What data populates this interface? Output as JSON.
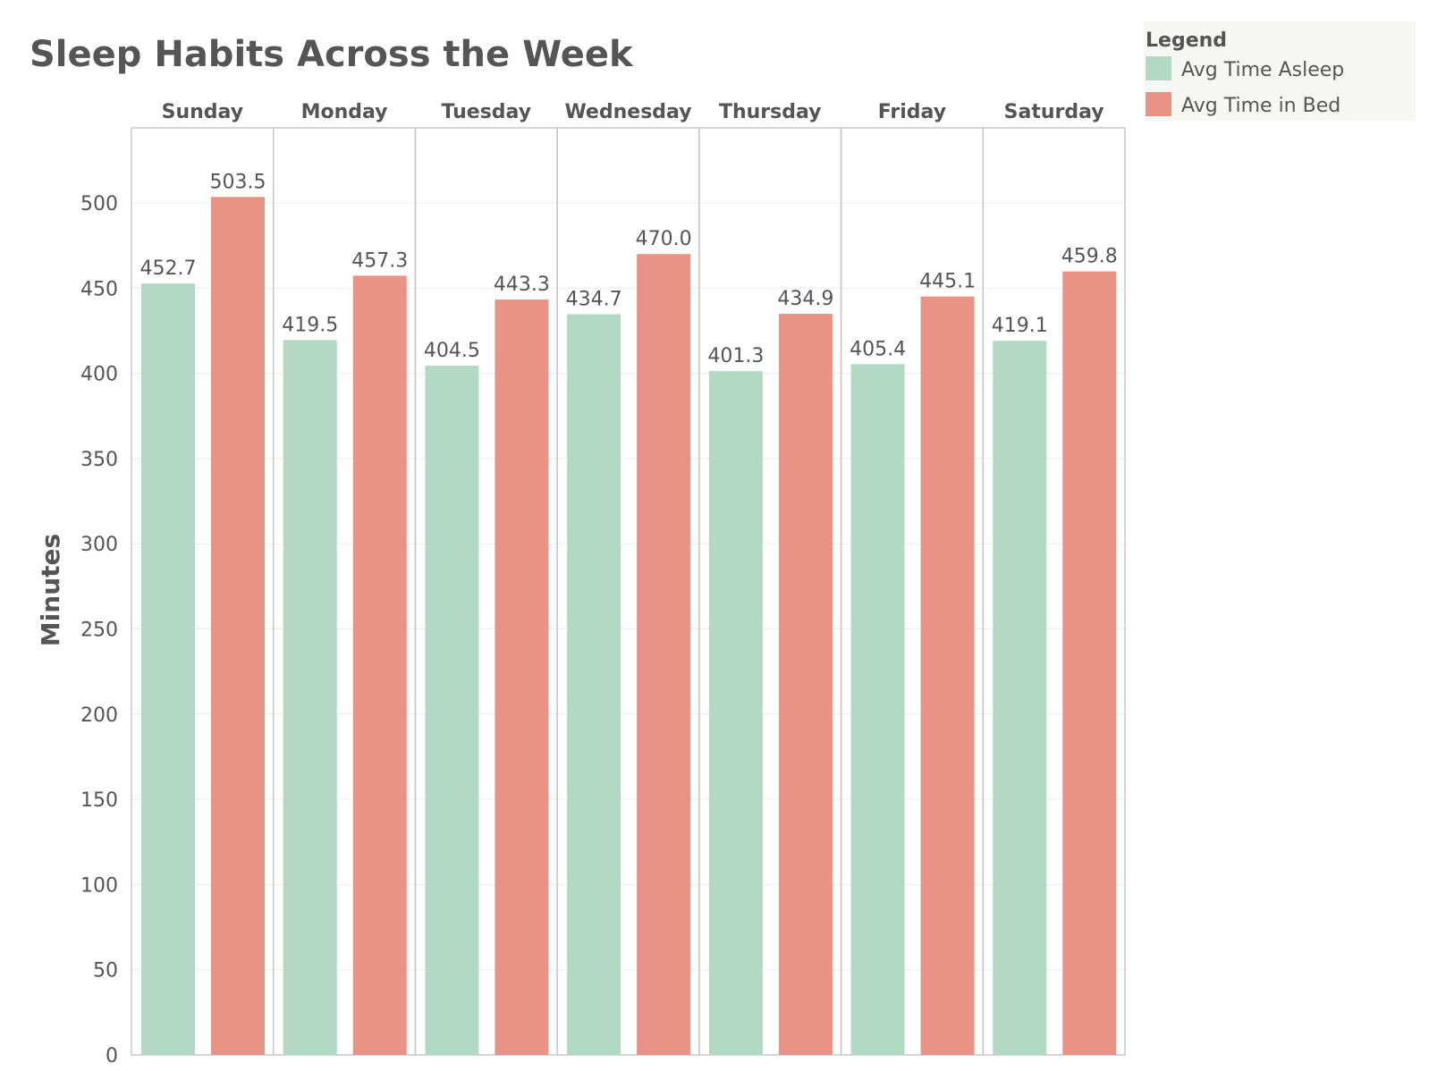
{
  "chart_data": {
    "type": "bar",
    "title": "Sleep Habits Across the Week",
    "ylabel": "Minutes",
    "xlabel": "",
    "ylim": [
      0,
      545
    ],
    "yticks": [
      0,
      50,
      100,
      150,
      200,
      250,
      300,
      350,
      400,
      450,
      500
    ],
    "grid": true,
    "legend": {
      "title": "Legend",
      "placement": "top-right-outside"
    },
    "categories": [
      "Sunday",
      "Monday",
      "Tuesday",
      "Wednesday",
      "Thursday",
      "Friday",
      "Saturday"
    ],
    "series": [
      {
        "name": "Avg Time Asleep",
        "color": "#b3d9c4",
        "values": [
          452.7,
          419.5,
          404.5,
          434.7,
          401.3,
          405.4,
          419.1
        ]
      },
      {
        "name": "Avg Time in Bed",
        "color": "#e99286",
        "values": [
          503.5,
          457.3,
          443.3,
          470.0,
          434.9,
          445.1,
          459.8
        ]
      }
    ]
  }
}
